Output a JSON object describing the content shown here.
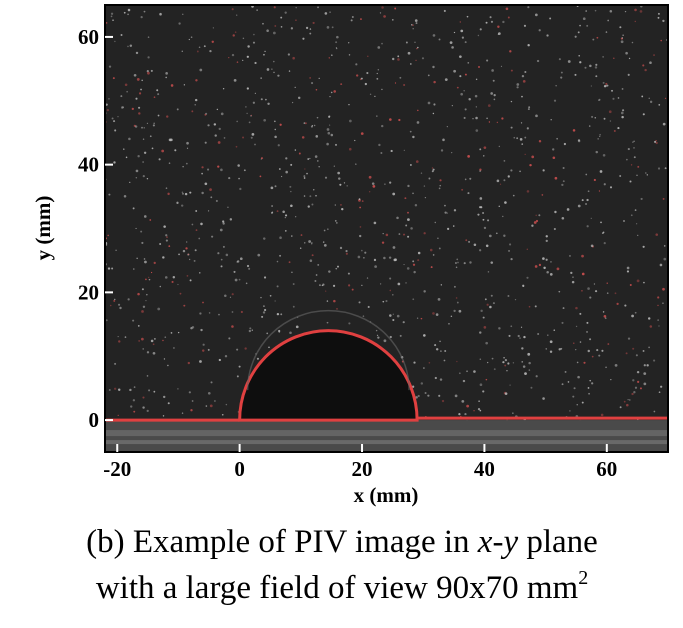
{
  "chart_data": {
    "type": "image",
    "xlabel": "x (mm)",
    "ylabel": "y (mm)",
    "xlim": [
      -22,
      70
    ],
    "ylim": [
      -5,
      65
    ],
    "xticks": [
      -20,
      0,
      20,
      40,
      60
    ],
    "yticks": [
      0,
      20,
      40,
      60
    ],
    "caption": [
      "(b) Example of PIV image in ",
      "x",
      "-",
      "y",
      " plane",
      "with a large field of view 90x70 mm",
      "2"
    ]
  }
}
